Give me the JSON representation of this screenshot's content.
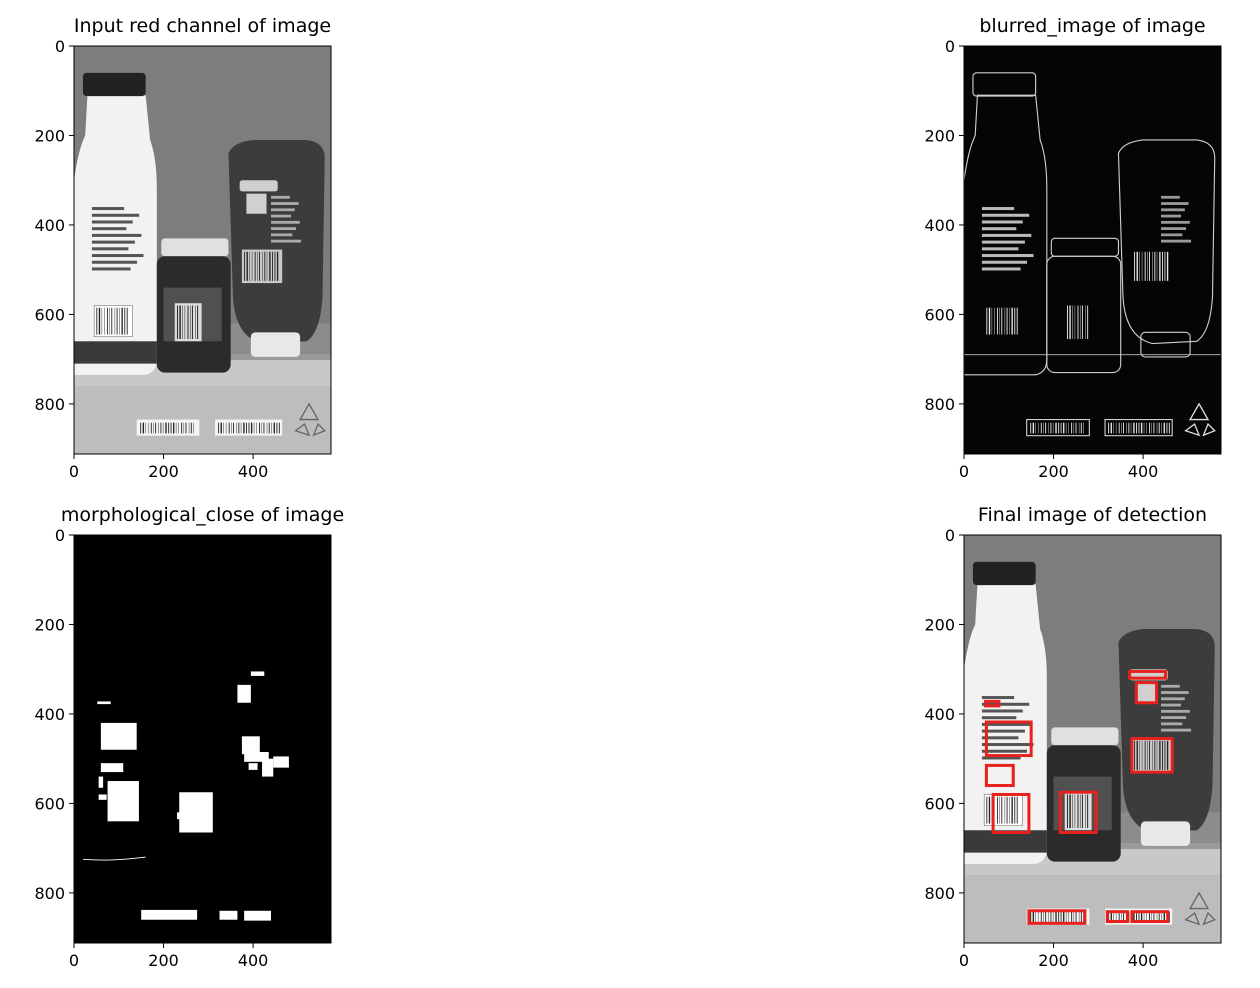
{
  "figure": {
    "background": "#ffffff"
  },
  "chart_data": [
    {
      "type": "image",
      "title": "Input red channel of image",
      "render": "grayscale",
      "xticks": [
        0,
        200,
        400
      ],
      "yticks": [
        0,
        200,
        400,
        600,
        800
      ],
      "xlim": [
        0,
        574
      ],
      "ylim": [
        912,
        0
      ],
      "detections": []
    },
    {
      "type": "image",
      "title": "blurred_image of image",
      "render": "edges",
      "xticks": [
        0,
        200,
        400
      ],
      "yticks": [
        0,
        200,
        400,
        600,
        800
      ],
      "xlim": [
        0,
        574
      ],
      "ylim": [
        912,
        0
      ],
      "detections": []
    },
    {
      "type": "image",
      "title": "morphological_close of image",
      "render": "binary",
      "xticks": [
        0,
        200,
        400
      ],
      "yticks": [
        0,
        200,
        400,
        600,
        800
      ],
      "xlim": [
        0,
        574
      ],
      "ylim": [
        912,
        0
      ],
      "detections": []
    },
    {
      "type": "image",
      "title": "Final image of detection",
      "render": "grayscale",
      "xticks": [
        0,
        200,
        400
      ],
      "yticks": [
        0,
        200,
        400,
        600,
        800
      ],
      "xlim": [
        0,
        574
      ],
      "ylim": [
        912,
        0
      ],
      "box_color": "#e8211d",
      "detections": [
        {
          "x": 50,
          "y": 418,
          "w": 100,
          "h": 75
        },
        {
          "x": 50,
          "y": 515,
          "w": 60,
          "h": 45
        },
        {
          "x": 65,
          "y": 580,
          "w": 80,
          "h": 85
        },
        {
          "x": 215,
          "y": 575,
          "w": 80,
          "h": 90
        },
        {
          "x": 370,
          "y": 305,
          "w": 80,
          "h": 15
        },
        {
          "x": 385,
          "y": 330,
          "w": 45,
          "h": 45
        },
        {
          "x": 375,
          "y": 455,
          "w": 90,
          "h": 75
        },
        {
          "x": 145,
          "y": 840,
          "w": 125,
          "h": 28
        },
        {
          "x": 320,
          "y": 842,
          "w": 45,
          "h": 22
        },
        {
          "x": 375,
          "y": 842,
          "w": 80,
          "h": 22
        },
        {
          "x": 48,
          "y": 372,
          "w": 30,
          "h": 10
        }
      ]
    }
  ]
}
